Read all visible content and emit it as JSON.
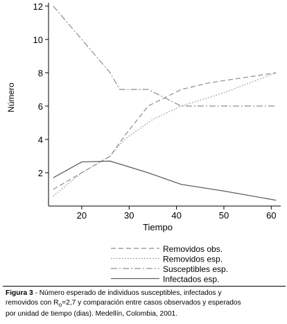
{
  "chart_data": {
    "type": "line",
    "xlabel": "Tiempo",
    "ylabel": "Número",
    "xlim": [
      13,
      62
    ],
    "ylim": [
      0,
      12.2
    ],
    "xticks": [
      20,
      30,
      40,
      50,
      60
    ],
    "yticks": [
      2,
      4,
      6,
      8,
      10,
      12
    ],
    "grid": false,
    "legend_position": "bottom-right",
    "series": [
      {
        "name": "Removidos obs.",
        "style": "dashed",
        "color": "#8c8c8c",
        "x": [
          14,
          20,
          26,
          29,
          34,
          41,
          47,
          54,
          61
        ],
        "y": [
          1.0,
          2.0,
          3.0,
          4.2,
          6.0,
          7.0,
          7.4,
          7.7,
          8.0
        ]
      },
      {
        "name": "Removidos esp.",
        "style": "dotted",
        "color": "#8c8c8c",
        "x": [
          14,
          20,
          26,
          29,
          35,
          41,
          50,
          61
        ],
        "y": [
          0.6,
          2.0,
          3.0,
          4.0,
          5.2,
          6.0,
          6.8,
          8.0
        ]
      },
      {
        "name": "Susceptibles esp.",
        "style": "dashdot",
        "color": "#8c8c8c",
        "x": [
          14,
          20,
          26,
          28,
          31,
          34,
          41,
          50,
          61
        ],
        "y": [
          12.0,
          10.0,
          8.0,
          7.0,
          7.0,
          7.0,
          6.0,
          6.0,
          6.0
        ]
      },
      {
        "name": "Infectados esp.",
        "style": "solid",
        "color": "#606060",
        "x": [
          14,
          20,
          26,
          34,
          41,
          50,
          61
        ],
        "y": [
          1.7,
          2.65,
          2.7,
          2.0,
          1.3,
          0.9,
          0.35
        ]
      }
    ]
  },
  "caption": {
    "label": "Figura 3",
    "line1_rest": " - Número esperado de individuos susceptibles, infectados y",
    "line2_pre": "removidos con R",
    "line2_sub": "o",
    "line2_post": "=2,7 y comparación entre casos observados y esperados",
    "line3": "por unidad de tiempo (dias). Medellín, Colombia, 2001."
  }
}
